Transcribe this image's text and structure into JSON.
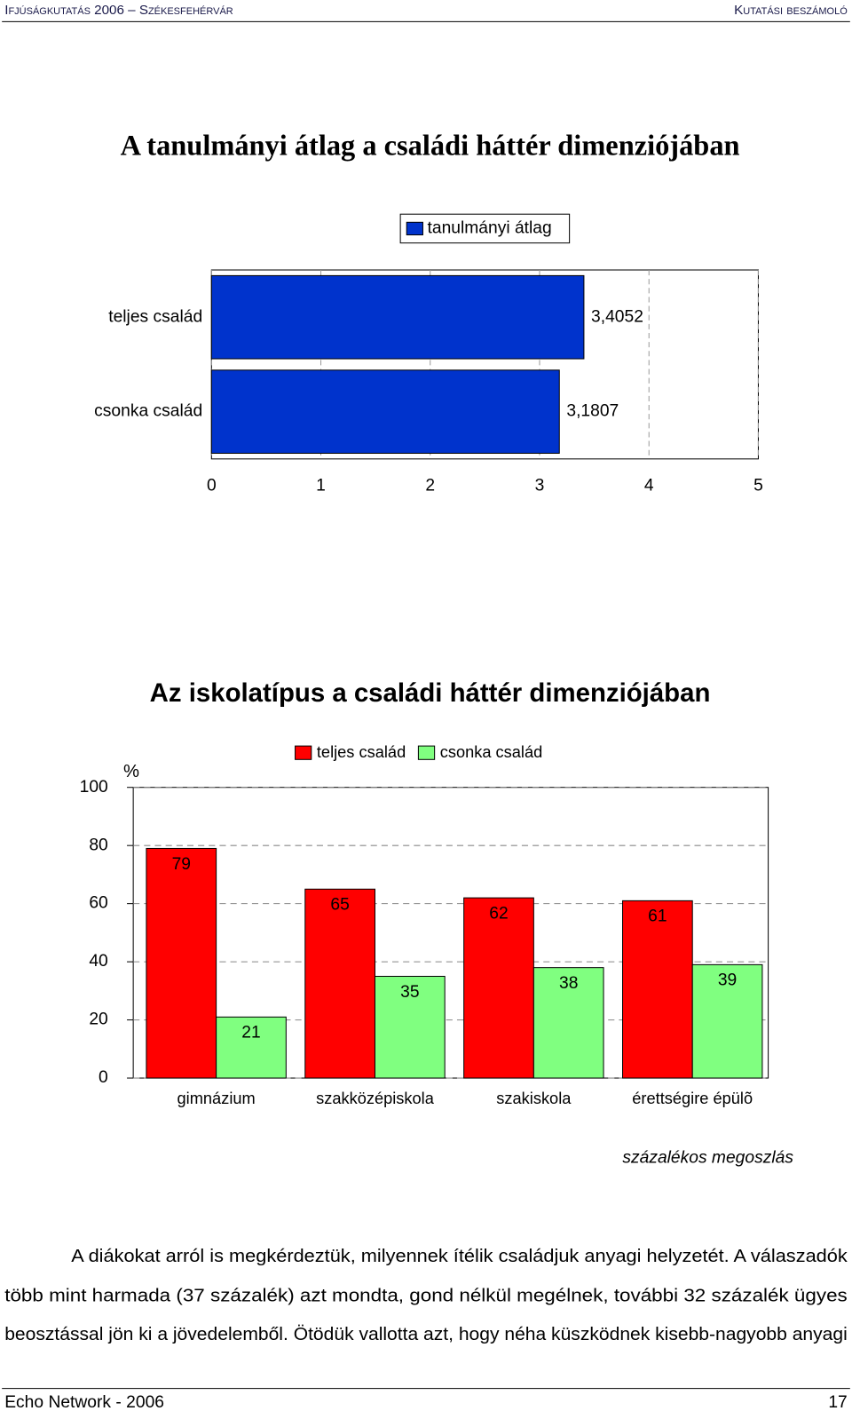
{
  "header": {
    "left": "Ifjúságkutatás 2006 – Székesfehérvár",
    "right": "Kutatási beszámoló"
  },
  "chart_data": [
    {
      "type": "bar",
      "orientation": "horizontal",
      "title": "A tanulmányi átlag a családi háttér dimenziójában",
      "categories": [
        "teljes család",
        "csonka család"
      ],
      "series": [
        {
          "name": "tanulmányi átlag",
          "color": "#0033cc",
          "values": [
            3.4052,
            3.1807
          ],
          "value_labels": [
            "3,4052",
            "3,1807"
          ]
        }
      ],
      "xlim": [
        0,
        5
      ],
      "xticks": [
        0,
        1,
        2,
        3,
        4,
        5
      ],
      "grid": true
    },
    {
      "type": "bar",
      "orientation": "vertical",
      "title": "Az iskolatípus a családi háttér dimenziójában",
      "y_label": "%",
      "categories": [
        "gimnázium",
        "szakközépiskola",
        "szakiskola",
        "érettségire épülõ"
      ],
      "series": [
        {
          "name": "teljes család",
          "color": "#ff0000",
          "values": [
            79,
            65,
            62,
            61
          ]
        },
        {
          "name": "csonka család",
          "color": "#80ff80",
          "values": [
            21,
            35,
            38,
            39
          ]
        }
      ],
      "ylim": [
        0,
        100
      ],
      "yticks": [
        0,
        20,
        40,
        60,
        80,
        100
      ],
      "grid": true,
      "note": "százalékos megoszlás"
    }
  ],
  "paragraph_lines": [
    "A diákokat arról is megkérdeztük, milyennek ítélik családjuk anyagi helyzetét. A válaszadók",
    "több mint harmada (37 százalék) azt mondta, gond nélkül megélnek, további 32 százalék ügyes",
    "beosztással jön ki a jövedelemből. Ötödük vallotta azt, hogy néha küszködnek kisebb-nagyobb anyagi"
  ],
  "footer": {
    "left": "Echo Network - 2006",
    "right": "17"
  }
}
